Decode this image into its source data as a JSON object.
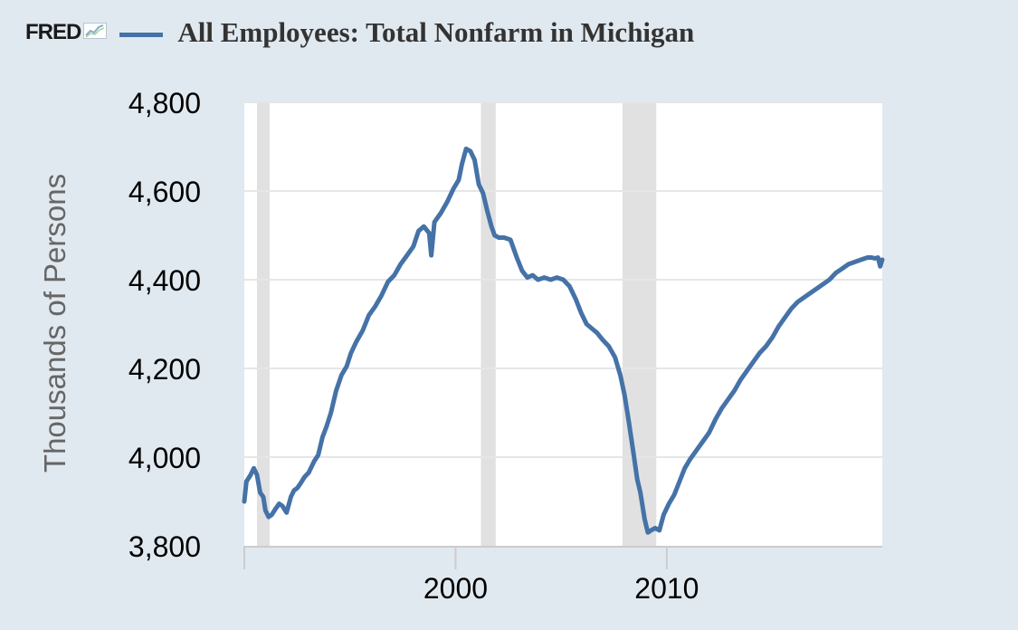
{
  "header": {
    "logo_text": "FRED",
    "logo_icon": "fred-graph-icon"
  },
  "colors": {
    "background": "#e1e9f0",
    "plot_background": "#ffffff",
    "series": "#4572a7",
    "recession": "#e1e1e1",
    "grid": "#e6e6e6"
  },
  "chart_data": {
    "type": "line",
    "title": "All Employees: Total Nonfarm in Michigan",
    "xlabel": "",
    "ylabel": "Thousands of Persons",
    "xlim": [
      1990.0,
      2020.2
    ],
    "ylim": [
      3800,
      4800
    ],
    "yticks": [
      3800,
      4000,
      4200,
      4400,
      4600,
      4800
    ],
    "ytick_labels": [
      "3,800",
      "4,000",
      "4,200",
      "4,400",
      "4,600",
      "4,800"
    ],
    "xticks": [
      2000,
      2010
    ],
    "xtick_labels": [
      "2000",
      "2010"
    ],
    "grid": true,
    "legend": "top-left",
    "recessions": [
      [
        1990.6,
        1991.2
      ],
      [
        2001.2,
        2001.9
      ],
      [
        2007.9,
        2009.5
      ]
    ],
    "series": [
      {
        "name": "All Employees: Total Nonfarm in Michigan",
        "x": [
          1990.0,
          1990.1,
          1990.3,
          1990.45,
          1990.6,
          1990.75,
          1990.9,
          1991.0,
          1991.15,
          1991.3,
          1991.5,
          1991.65,
          1991.8,
          1992.0,
          1992.2,
          1992.35,
          1992.5,
          1992.65,
          1992.85,
          1993.05,
          1993.3,
          1993.5,
          1993.7,
          1993.9,
          1994.1,
          1994.35,
          1994.6,
          1994.85,
          1995.05,
          1995.3,
          1995.6,
          1995.9,
          1996.2,
          1996.5,
          1996.8,
          1997.1,
          1997.4,
          1997.7,
          1998.0,
          1998.25,
          1998.5,
          1998.75,
          1998.85,
          1999.0,
          1999.3,
          1999.6,
          1999.9,
          2000.15,
          2000.3,
          2000.5,
          2000.7,
          2000.9,
          2001.1,
          2001.3,
          2001.5,
          2001.7,
          2001.85,
          2002.05,
          2002.3,
          2002.6,
          2002.9,
          2003.15,
          2003.4,
          2003.65,
          2003.9,
          2004.2,
          2004.5,
          2004.8,
          2005.1,
          2005.4,
          2005.7,
          2005.95,
          2006.2,
          2006.45,
          2006.7,
          2006.95,
          2007.25,
          2007.55,
          2007.8,
          2008.0,
          2008.2,
          2008.45,
          2008.6,
          2008.75,
          2008.95,
          2009.1,
          2009.25,
          2009.45,
          2009.65,
          2009.85,
          2010.1,
          2010.35,
          2010.6,
          2010.85,
          2011.1,
          2011.4,
          2011.7,
          2012.0,
          2012.3,
          2012.6,
          2012.9,
          2013.2,
          2013.5,
          2013.8,
          2014.1,
          2014.4,
          2014.7,
          2015.0,
          2015.3,
          2015.6,
          2015.9,
          2016.2,
          2016.5,
          2016.8,
          2017.1,
          2017.4,
          2017.7,
          2018.0,
          2018.3,
          2018.6,
          2018.9,
          2019.2,
          2019.5,
          2019.7,
          2019.85,
          2020.0,
          2020.1,
          2020.2
        ],
        "values": [
          3900,
          3945,
          3960,
          3975,
          3960,
          3920,
          3910,
          3880,
          3865,
          3870,
          3885,
          3895,
          3890,
          3875,
          3910,
          3925,
          3930,
          3940,
          3955,
          3965,
          3990,
          4005,
          4045,
          4070,
          4100,
          4150,
          4185,
          4205,
          4235,
          4260,
          4285,
          4320,
          4340,
          4365,
          4395,
          4410,
          4435,
          4455,
          4475,
          4510,
          4520,
          4505,
          4455,
          4530,
          4550,
          4575,
          4605,
          4625,
          4660,
          4695,
          4690,
          4670,
          4615,
          4595,
          4555,
          4520,
          4500,
          4495,
          4495,
          4490,
          4450,
          4420,
          4405,
          4410,
          4400,
          4405,
          4400,
          4405,
          4400,
          4385,
          4355,
          4325,
          4300,
          4290,
          4280,
          4265,
          4250,
          4225,
          4185,
          4140,
          4080,
          4000,
          3950,
          3920,
          3860,
          3830,
          3835,
          3840,
          3835,
          3870,
          3895,
          3915,
          3945,
          3975,
          3995,
          4015,
          4035,
          4055,
          4085,
          4110,
          4130,
          4150,
          4175,
          4195,
          4215,
          4235,
          4250,
          4270,
          4295,
          4315,
          4335,
          4350,
          4360,
          4370,
          4380,
          4390,
          4400,
          4415,
          4425,
          4435,
          4440,
          4445,
          4450,
          4450,
          4448,
          4450,
          4430,
          4445
        ]
      }
    ]
  }
}
